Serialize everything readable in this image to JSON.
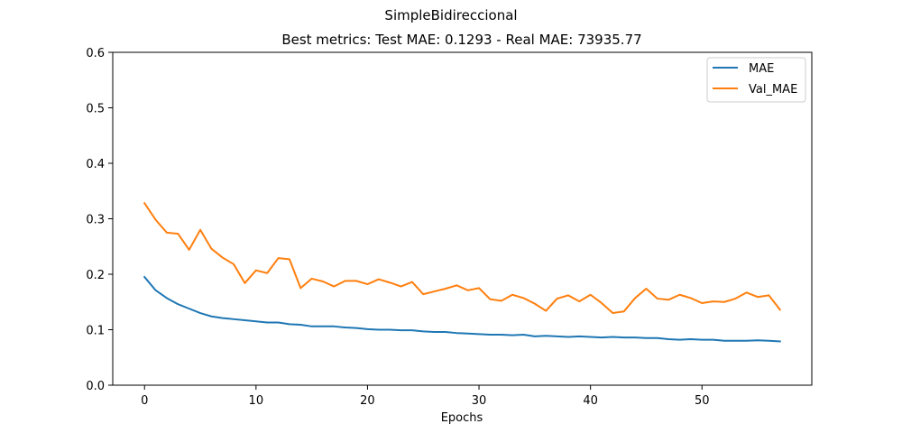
{
  "chart_data": {
    "type": "line",
    "suptitle": "SimpleBidireccional",
    "title": "Best metrics: Test MAE: 0.1293 - Real MAE: 73935.77",
    "xlabel": "Epochs",
    "ylabel": "",
    "xlim": [
      -2.85,
      59.85
    ],
    "ylim": [
      0,
      0.6
    ],
    "xticks": [
      0,
      10,
      20,
      30,
      40,
      50
    ],
    "xtick_labels": [
      "0",
      "10",
      "20",
      "30",
      "40",
      "50"
    ],
    "yticks": [
      0.0,
      0.1,
      0.2,
      0.3,
      0.4,
      0.5,
      0.6
    ],
    "ytick_labels": [
      "0.0",
      "0.1",
      "0.2",
      "0.3",
      "0.4",
      "0.5",
      "0.6"
    ],
    "grid": false,
    "legend_position": "top-right",
    "x": [
      0,
      1,
      2,
      3,
      4,
      5,
      6,
      7,
      8,
      9,
      10,
      11,
      12,
      13,
      14,
      15,
      16,
      17,
      18,
      19,
      20,
      21,
      22,
      23,
      24,
      25,
      26,
      27,
      28,
      29,
      30,
      31,
      32,
      33,
      34,
      35,
      36,
      37,
      38,
      39,
      40,
      41,
      42,
      43,
      44,
      45,
      46,
      47,
      48,
      49,
      50,
      51,
      52,
      53,
      54,
      55,
      56,
      57
    ],
    "series": [
      {
        "name": "MAE",
        "color": "#1f77b4",
        "values": [
          0.195,
          0.171,
          0.157,
          0.146,
          0.138,
          0.13,
          0.124,
          0.121,
          0.119,
          0.117,
          0.115,
          0.113,
          0.113,
          0.11,
          0.109,
          0.106,
          0.106,
          0.106,
          0.104,
          0.103,
          0.101,
          0.1,
          0.1,
          0.099,
          0.099,
          0.097,
          0.096,
          0.096,
          0.094,
          0.093,
          0.092,
          0.091,
          0.091,
          0.09,
          0.091,
          0.088,
          0.089,
          0.088,
          0.087,
          0.088,
          0.087,
          0.086,
          0.087,
          0.086,
          0.086,
          0.085,
          0.085,
          0.083,
          0.082,
          0.083,
          0.082,
          0.082,
          0.08,
          0.08,
          0.08,
          0.081,
          0.08,
          0.079
        ]
      },
      {
        "name": "Val_MAE",
        "color": "#ff7f0e",
        "values": [
          0.328,
          0.298,
          0.275,
          0.273,
          0.244,
          0.28,
          0.246,
          0.23,
          0.218,
          0.184,
          0.207,
          0.202,
          0.229,
          0.227,
          0.175,
          0.192,
          0.187,
          0.178,
          0.188,
          0.188,
          0.182,
          0.191,
          0.185,
          0.178,
          0.186,
          0.164,
          0.169,
          0.174,
          0.18,
          0.171,
          0.175,
          0.155,
          0.152,
          0.163,
          0.157,
          0.147,
          0.134,
          0.156,
          0.162,
          0.151,
          0.163,
          0.148,
          0.13,
          0.133,
          0.157,
          0.174,
          0.156,
          0.154,
          0.163,
          0.157,
          0.148,
          0.151,
          0.15,
          0.156,
          0.167,
          0.159,
          0.162,
          0.136
        ]
      }
    ]
  }
}
